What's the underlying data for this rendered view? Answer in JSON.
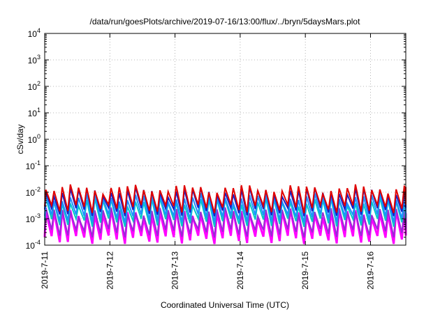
{
  "chart_data": {
    "type": "line",
    "title": "/data/run/goesPlots/archive/2019-07-16/13:00/flux/../bryn/5daysMars.plot",
    "xlabel": "Coordinated Universal Time (UTC)",
    "ylabel": "cSv/day",
    "yscale": "log",
    "ylim": [
      0.0001,
      10000
    ],
    "xlim": [
      "2019-07-11",
      "2019-07-16 13:00"
    ],
    "x_ticks": [
      "2019-7-11",
      "2019-7-12",
      "2019-7-13",
      "2019-7-14",
      "2019-7-15",
      "2019-7-16"
    ],
    "y_ticks": [
      {
        "base": "10",
        "exp": "-4"
      },
      {
        "base": "10",
        "exp": "-3"
      },
      {
        "base": "10",
        "exp": "-2"
      },
      {
        "base": "10",
        "exp": "-1"
      },
      {
        "base": "10",
        "exp": "0"
      },
      {
        "base": "10",
        "exp": "1"
      },
      {
        "base": "10",
        "exp": "2"
      },
      {
        "base": "10",
        "exp": "3"
      },
      {
        "base": "10",
        "exp": "4"
      }
    ],
    "grid": true,
    "legend": "none",
    "sawtooth_period_hours": 3,
    "series": [
      {
        "color": "#ff00ff",
        "peak": 0.0017,
        "trough": 0.00017
      },
      {
        "color": "#9a2ad6",
        "peak": 0.0019,
        "trough": 0.0003
      },
      {
        "color": "#00c8c8",
        "peak": 0.0045,
        "trough": 0.00075
      },
      {
        "color": "#1e90ff",
        "peak": 0.0065,
        "trough": 0.0011
      },
      {
        "color": "#1420c8",
        "peak": 0.011,
        "trough": 0.0019
      },
      {
        "color": "#e00000",
        "peak": 0.014,
        "trough": 0.0025
      }
    ]
  }
}
